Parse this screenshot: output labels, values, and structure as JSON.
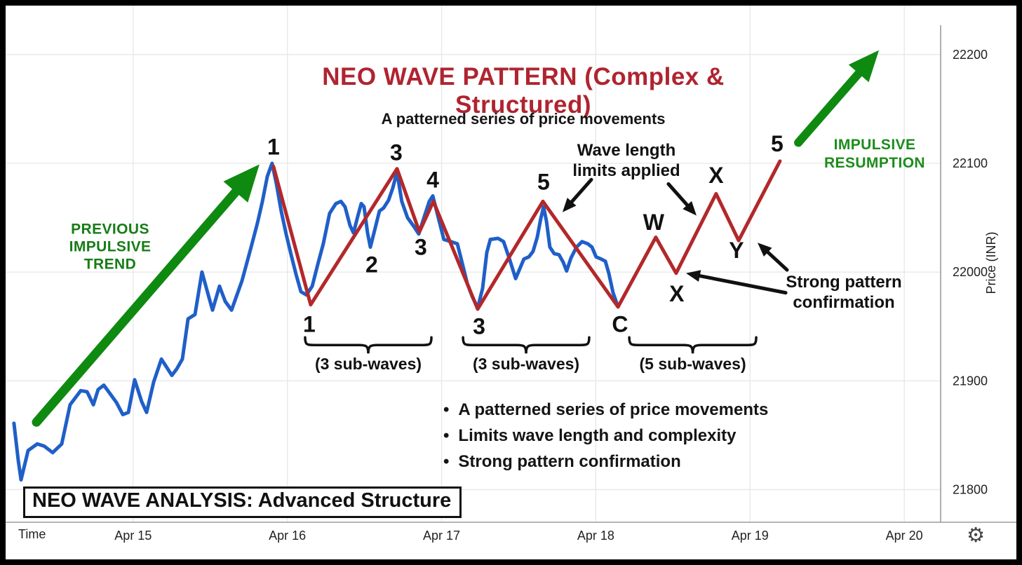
{
  "colors": {
    "blue_line": "#1F5FC8",
    "red_line": "#B3282A",
    "title_red": "#AF2430",
    "green_arrow": "#0F8A10",
    "green_text": "#177D17",
    "grid": "#E7E7E7",
    "axis": "#9B9B9B",
    "text": "#111111"
  },
  "icons": {
    "gear": "⚙"
  },
  "footer_box": "NEO WAVE ANALYSIS: Advanced Structure",
  "bullets": [
    "A patterned series of price movements",
    "Limits wave length and complexity",
    "Strong pattern confirmation"
  ],
  "chart_data": {
    "type": "line",
    "title": "NEO WAVE PATTERN (Complex & Structured)",
    "subtitle": "A patterned series of price movements",
    "xlim": [
      14.173,
      20.236
    ],
    "ylim": [
      21770,
      22245
    ],
    "x_axis": {
      "title": "Time",
      "ticks": [
        {
          "label": "Apr 15",
          "day": 15
        },
        {
          "label": "Apr 16",
          "day": 16
        },
        {
          "label": "Apr 17",
          "day": 17
        },
        {
          "label": "Apr 18",
          "day": 18
        },
        {
          "label": "Apr 19",
          "day": 19
        },
        {
          "label": "Apr 20",
          "day": 20
        }
      ]
    },
    "y_axis": {
      "title": "Price (INR)",
      "ticks": [
        22200,
        22100,
        22000,
        21900,
        21800
      ]
    },
    "series": [
      {
        "name": "price-action",
        "color": "#1F5FC8",
        "width": 5,
        "points": [
          [
            14.227,
            21861
          ],
          [
            14.255,
            21827
          ],
          [
            14.273,
            21809
          ],
          [
            14.319,
            21836
          ],
          [
            14.378,
            21842
          ],
          [
            14.423,
            21840
          ],
          [
            14.478,
            21834
          ],
          [
            14.537,
            21842
          ],
          [
            14.591,
            21878
          ],
          [
            14.66,
            21891
          ],
          [
            14.701,
            21890
          ],
          [
            14.742,
            21878
          ],
          [
            14.773,
            21892
          ],
          [
            14.81,
            21896
          ],
          [
            14.851,
            21888
          ],
          [
            14.892,
            21880
          ],
          [
            14.933,
            21869
          ],
          [
            14.969,
            21871
          ],
          [
            15.01,
            21901
          ],
          [
            15.055,
            21881
          ],
          [
            15.087,
            21871
          ],
          [
            15.133,
            21899
          ],
          [
            15.183,
            21920
          ],
          [
            15.215,
            21913
          ],
          [
            15.251,
            21905
          ],
          [
            15.283,
            21911
          ],
          [
            15.319,
            21920
          ],
          [
            15.356,
            21957
          ],
          [
            15.401,
            21961
          ],
          [
            15.446,
            22000
          ],
          [
            15.487,
            21979
          ],
          [
            15.515,
            21965
          ],
          [
            15.56,
            21987
          ],
          [
            15.597,
            21973
          ],
          [
            15.638,
            21965
          ],
          [
            15.706,
            21992
          ],
          [
            15.765,
            22023
          ],
          [
            15.806,
            22045
          ],
          [
            15.838,
            22065
          ],
          [
            15.87,
            22088
          ],
          [
            15.901,
            22100
          ],
          [
            15.929,
            22081
          ],
          [
            15.96,
            22056
          ],
          [
            15.992,
            22035
          ],
          [
            16.024,
            22016
          ],
          [
            16.056,
            21998
          ],
          [
            16.088,
            21982
          ],
          [
            16.124,
            21979
          ],
          [
            16.161,
            21987
          ],
          [
            16.197,
            22007
          ],
          [
            16.233,
            22026
          ],
          [
            16.274,
            22054
          ],
          [
            16.315,
            22063
          ],
          [
            16.347,
            22065
          ],
          [
            16.374,
            22060
          ],
          [
            16.406,
            22043
          ],
          [
            16.429,
            22036
          ],
          [
            16.456,
            22051
          ],
          [
            16.479,
            22063
          ],
          [
            16.497,
            22060
          ],
          [
            16.52,
            22036
          ],
          [
            16.538,
            22023
          ],
          [
            16.565,
            22038
          ],
          [
            16.597,
            22056
          ],
          [
            16.624,
            22059
          ],
          [
            16.656,
            22066
          ],
          [
            16.683,
            22077
          ],
          [
            16.711,
            22092
          ],
          [
            16.742,
            22065
          ],
          [
            16.779,
            22050
          ],
          [
            16.82,
            22042
          ],
          [
            16.852,
            22035
          ],
          [
            16.888,
            22051
          ],
          [
            16.92,
            22065
          ],
          [
            16.943,
            22070
          ],
          [
            16.979,
            22050
          ],
          [
            17.015,
            22030
          ],
          [
            17.061,
            22028
          ],
          [
            17.102,
            22026
          ],
          [
            17.129,
            22011
          ],
          [
            17.166,
            21990
          ],
          [
            17.197,
            21978
          ],
          [
            17.234,
            21967
          ],
          [
            17.266,
            21985
          ],
          [
            17.293,
            22018
          ],
          [
            17.316,
            22030
          ],
          [
            17.366,
            22031
          ],
          [
            17.402,
            22028
          ],
          [
            17.443,
            22011
          ],
          [
            17.48,
            21994
          ],
          [
            17.507,
            22003
          ],
          [
            17.534,
            22012
          ],
          [
            17.566,
            22014
          ],
          [
            17.593,
            22019
          ],
          [
            17.62,
            22032
          ],
          [
            17.643,
            22049
          ],
          [
            17.661,
            22060
          ],
          [
            17.68,
            22047
          ],
          [
            17.702,
            22023
          ],
          [
            17.73,
            22017
          ],
          [
            17.761,
            22016
          ],
          [
            17.789,
            22009
          ],
          [
            17.811,
            22001
          ],
          [
            17.839,
            22013
          ],
          [
            17.875,
            22023
          ],
          [
            17.911,
            22028
          ],
          [
            17.948,
            22026
          ],
          [
            17.975,
            22023
          ],
          [
            18.002,
            22014
          ],
          [
            18.034,
            22012
          ],
          [
            18.062,
            22010
          ],
          [
            18.084,
            21999
          ],
          [
            18.112,
            21981
          ],
          [
            18.144,
            21968
          ]
        ]
      },
      {
        "name": "neo-wave-pattern",
        "color": "#B3282A",
        "width": 5,
        "points": [
          [
            15.91,
            22097
          ],
          [
            16.151,
            21970
          ],
          [
            16.711,
            22095
          ],
          [
            16.856,
            22037
          ],
          [
            16.947,
            22065
          ],
          [
            17.234,
            21966
          ],
          [
            17.657,
            22065
          ],
          [
            18.144,
            21968
          ],
          [
            18.389,
            22032
          ],
          [
            18.521,
            21999
          ],
          [
            18.78,
            22072
          ],
          [
            18.926,
            22029
          ],
          [
            19.194,
            22102
          ]
        ]
      }
    ],
    "wave_labels": [
      {
        "text": "1",
        "day": 15.91,
        "price": 22115
      },
      {
        "text": "1",
        "day": 16.142,
        "price": 21952
      },
      {
        "text": "2",
        "day": 16.547,
        "price": 22007
      },
      {
        "text": "3",
        "day": 16.706,
        "price": 22110
      },
      {
        "text": "3",
        "day": 16.865,
        "price": 22023
      },
      {
        "text": "4",
        "day": 16.943,
        "price": 22085
      },
      {
        "text": "3",
        "day": 17.243,
        "price": 21950
      },
      {
        "text": "5",
        "day": 17.661,
        "price": 22083
      },
      {
        "text": "C",
        "day": 18.157,
        "price": 21952
      },
      {
        "text": "W",
        "day": 18.375,
        "price": 22046
      },
      {
        "text": "X",
        "day": 18.525,
        "price": 21980
      },
      {
        "text": "X",
        "day": 18.78,
        "price": 22089
      },
      {
        "text": "Y",
        "day": 18.912,
        "price": 22020
      },
      {
        "text": "5",
        "day": 19.176,
        "price": 22118
      }
    ],
    "braces": [
      {
        "from_day": 16.115,
        "to_day": 16.934,
        "price": 21940,
        "label": "(3 sub-waves)"
      },
      {
        "from_day": 17.139,
        "to_day": 17.957,
        "price": 21940,
        "label": "(3 sub-waves)"
      },
      {
        "from_day": 18.217,
        "to_day": 19.04,
        "price": 21940,
        "label": "(5 sub-waves)"
      }
    ],
    "arrows": {
      "green": [
        {
          "name": "previous-impulsive-trend-arrow",
          "from": [
            14.373,
            21862
          ],
          "to": [
            15.819,
            22099
          ],
          "shaft": 13,
          "head_len": 52,
          "head_w": 46,
          "color": "#0F8A10"
        },
        {
          "name": "impulsive-resumption-arrow",
          "from": [
            19.313,
            22119
          ],
          "to": [
            19.836,
            22204
          ],
          "shaft": 12,
          "head_len": 44,
          "head_w": 38,
          "color": "#0F8A10"
        }
      ],
      "black": [
        {
          "name": "wave-limit-arrow-left",
          "from": [
            17.971,
            22085
          ],
          "to": [
            17.784,
            22055
          ]
        },
        {
          "name": "wave-limit-arrow-right",
          "from": [
            18.471,
            22081
          ],
          "to": [
            18.653,
            22052
          ]
        },
        {
          "name": "confirmation-arrow-to-x",
          "from": [
            19.231,
            21981
          ],
          "to": [
            18.585,
            21999
          ]
        },
        {
          "name": "confirmation-arrow-to-y",
          "from": [
            19.24,
            22002
          ],
          "to": [
            19.049,
            22027
          ]
        }
      ]
    },
    "annotations": {
      "previous_trend": "PREVIOUS\nIMPULSIVE\nTREND",
      "impulsive_resumption": "IMPULSIVE\nRESUMPTION",
      "wave_length_limits": "Wave length\nlimits applied",
      "strong_pattern": "Strong pattern\nconfirmation"
    }
  }
}
